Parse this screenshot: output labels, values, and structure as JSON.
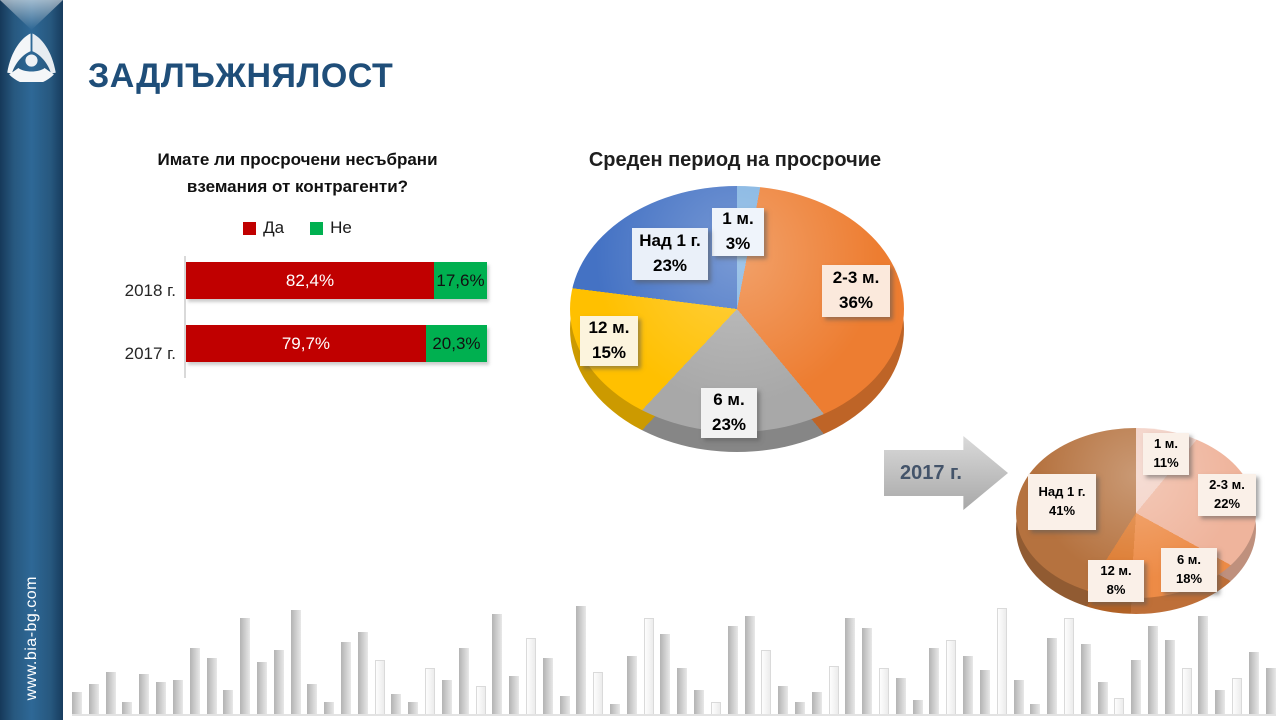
{
  "header": {
    "title": "ЗАДЛЪЖНЯЛОСТ"
  },
  "sidebar": {
    "url": "www.bia-bg.com"
  },
  "chart_data": [
    {
      "type": "bar",
      "subtype": "stacked-horizontal",
      "title": "Имате ли просрочени несъбрани вземания от контрагенти?",
      "title_lines": [
        "Имате ли просрочени  несъбрани",
        "вземания от контрагенти?"
      ],
      "categories": [
        "2018 г.",
        "2017 г."
      ],
      "series": [
        {
          "name": "Да",
          "color": "#C00000",
          "values": [
            82.4,
            79.7
          ],
          "labels": [
            "82,4%",
            "79,7%"
          ]
        },
        {
          "name": "Не",
          "color": "#00B050",
          "values": [
            17.6,
            20.3
          ],
          "labels": [
            "17,6%",
            "20,3%"
          ]
        }
      ],
      "xlim": [
        0,
        100
      ],
      "legend_position": "top",
      "grid": false
    },
    {
      "type": "pie",
      "style": "3d",
      "year": "2018 г.",
      "title": "Среден период на просрочие",
      "slices": [
        {
          "label": "1 м.",
          "value": 3,
          "value_label": "3%",
          "color": "#7CB0E0",
          "callout_bg": "#EFF4FB"
        },
        {
          "label": "2-3 м.",
          "value": 36,
          "value_label": "36%",
          "color": "#ED7D31",
          "callout_bg": "#FBE9DC"
        },
        {
          "label": "6 м.",
          "value": 23,
          "value_label": "23%",
          "color": "#A8A8A8",
          "callout_bg": "#F2F2F2"
        },
        {
          "label": "12 м.",
          "value": 15,
          "value_label": "15%",
          "color": "#FFC000",
          "callout_bg": "#FCF4DD"
        },
        {
          "label": "Над 1 г.",
          "value": 23,
          "value_label": "23%",
          "color": "#4472C4",
          "callout_bg": "#EAF0F9"
        }
      ]
    },
    {
      "type": "pie",
      "style": "3d",
      "year": "2017 г.",
      "arrow_label": "2017 г.",
      "callout_bg": "#FAF0E8",
      "slices": [
        {
          "label": "1 м.",
          "value": 11,
          "value_label": "11%",
          "color": "#F2CFC3"
        },
        {
          "label": "2-3 м.",
          "value": 22,
          "value_label": "22%",
          "color": "#EFB49C"
        },
        {
          "label": "6 м.",
          "value": 18,
          "value_label": "18%",
          "color": "#ED8B46"
        },
        {
          "label": "12 м.",
          "value": 8,
          "value_label": "8%",
          "color": "#DD7B30"
        },
        {
          "label": "Над 1 г.",
          "value": 41,
          "value_label": "41%",
          "color": "#B5723F"
        }
      ]
    }
  ],
  "decor_bars": {
    "heights": [
      22,
      30,
      42,
      12,
      40,
      32,
      34,
      66,
      56,
      24,
      96,
      52,
      64,
      104,
      30,
      12,
      72,
      82,
      54,
      20,
      12,
      46,
      34,
      66,
      28,
      100,
      38,
      76,
      56,
      18,
      108,
      42,
      10,
      58,
      96,
      80,
      46,
      24,
      12,
      88,
      98,
      64,
      28,
      12,
      22,
      48,
      96,
      86,
      46,
      36,
      14,
      66,
      74,
      58,
      44,
      106,
      34,
      10,
      76,
      96,
      70,
      32,
      16,
      54,
      88,
      74,
      46,
      98,
      24,
      36,
      62,
      46
    ],
    "white_indices": [
      18,
      21,
      24,
      27,
      31,
      34,
      38,
      41,
      45,
      48,
      52,
      55,
      59,
      62,
      66,
      69
    ]
  }
}
